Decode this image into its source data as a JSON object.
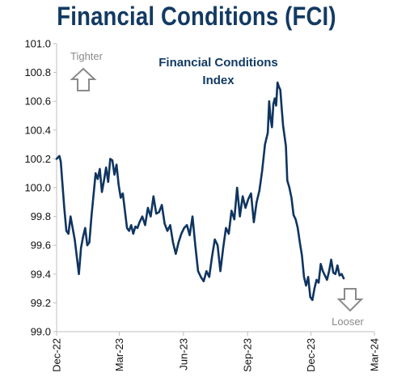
{
  "chart_data": {
    "type": "line",
    "title": "Financial Conditions (FCI)",
    "inner_title": [
      "Financial Conditions",
      "Index"
    ],
    "annotations": {
      "up": "Tighter",
      "down": "Looser"
    },
    "ylim": [
      99.0,
      101.0
    ],
    "yticks": [
      "99.0",
      "99.2",
      "99.4",
      "99.6",
      "99.8",
      "100.0",
      "100.2",
      "100.4",
      "100.6",
      "100.8",
      "101.0"
    ],
    "xlim": [
      "2022-12-01",
      "2024-03-01"
    ],
    "xticks": [
      "Dec-22",
      "Mar-23",
      "Jun-23",
      "Sep-23",
      "Dec-23",
      "Mar-24"
    ],
    "grid": false,
    "colors": {
      "line": "#0f3560",
      "title": "#123a63",
      "arrow": "#8a8a8a",
      "axis": "#bfbfbf"
    },
    "series": [
      {
        "x": [
          "2022-12-01",
          "2022-12-03",
          "2022-12-05",
          "2022-12-07",
          "2022-12-09",
          "2022-12-12",
          "2022-12-15",
          "2022-12-18",
          "2022-12-21",
          "2022-12-24",
          "2022-12-27",
          "2022-12-30",
          "2023-01-02",
          "2023-01-05",
          "2023-01-08",
          "2023-01-11",
          "2023-01-14",
          "2023-01-17",
          "2023-01-20",
          "2023-01-23",
          "2023-01-26",
          "2023-01-29",
          "2023-02-01",
          "2023-02-04",
          "2023-02-07",
          "2023-02-10",
          "2023-02-13",
          "2023-02-16",
          "2023-02-19",
          "2023-02-22",
          "2023-02-25",
          "2023-02-28",
          "2023-03-03",
          "2023-03-06",
          "2023-03-09",
          "2023-03-12",
          "2023-03-15",
          "2023-03-18",
          "2023-03-21",
          "2023-03-24",
          "2023-03-27",
          "2023-03-30",
          "2023-04-03",
          "2023-04-07",
          "2023-04-11",
          "2023-04-15",
          "2023-04-19",
          "2023-04-23",
          "2023-04-27",
          "2023-05-01",
          "2023-05-05",
          "2023-05-09",
          "2023-05-13",
          "2023-05-17",
          "2023-05-21",
          "2023-05-25",
          "2023-05-29",
          "2023-06-02",
          "2023-06-06",
          "2023-06-10",
          "2023-06-14",
          "2023-06-18",
          "2023-06-22",
          "2023-06-26",
          "2023-06-30",
          "2023-07-04",
          "2023-07-08",
          "2023-07-12",
          "2023-07-16",
          "2023-07-20",
          "2023-07-24",
          "2023-07-28",
          "2023-08-01",
          "2023-08-05",
          "2023-08-09",
          "2023-08-13",
          "2023-08-17",
          "2023-08-21",
          "2023-08-25",
          "2023-08-29",
          "2023-09-02",
          "2023-09-06",
          "2023-09-10",
          "2023-09-14",
          "2023-09-18",
          "2023-09-22",
          "2023-09-26",
          "2023-09-30",
          "2023-10-02",
          "2023-10-04",
          "2023-10-06",
          "2023-10-08",
          "2023-10-10",
          "2023-10-12",
          "2023-10-14",
          "2023-10-16",
          "2023-10-18",
          "2023-10-20",
          "2023-10-22",
          "2023-10-24",
          "2023-10-26",
          "2023-10-28",
          "2023-10-31",
          "2023-11-03",
          "2023-11-06",
          "2023-11-09",
          "2023-11-12",
          "2023-11-15",
          "2023-11-18",
          "2023-11-21",
          "2023-11-24",
          "2023-11-27",
          "2023-11-30",
          "2023-12-03",
          "2023-12-06",
          "2023-12-09",
          "2023-12-12",
          "2023-12-15",
          "2023-12-18",
          "2023-12-21",
          "2023-12-24",
          "2023-12-27",
          "2023-12-30",
          "2024-01-02",
          "2024-01-05",
          "2024-01-08",
          "2024-01-11",
          "2024-01-14",
          "2024-01-17"
        ],
        "y": [
          100.2,
          100.21,
          100.22,
          100.18,
          100.05,
          99.86,
          99.7,
          99.68,
          99.8,
          99.72,
          99.64,
          99.52,
          99.4,
          99.58,
          99.66,
          99.72,
          99.6,
          99.62,
          99.8,
          99.95,
          100.1,
          100.06,
          100.13,
          99.97,
          100.05,
          100.14,
          100.04,
          100.2,
          100.19,
          100.09,
          100.16,
          100.02,
          99.93,
          99.96,
          99.84,
          99.72,
          99.7,
          99.74,
          99.68,
          99.73,
          99.72,
          99.76,
          99.8,
          99.74,
          99.86,
          99.8,
          99.94,
          99.82,
          99.83,
          99.88,
          99.75,
          99.7,
          99.74,
          99.62,
          99.54,
          99.62,
          99.68,
          99.72,
          99.74,
          99.67,
          99.8,
          99.6,
          99.42,
          99.38,
          99.35,
          99.42,
          99.38,
          99.52,
          99.64,
          99.6,
          99.42,
          99.58,
          99.72,
          99.68,
          99.84,
          99.78,
          100.0,
          99.8,
          99.94,
          99.86,
          99.92,
          99.96,
          99.76,
          99.9,
          99.98,
          100.12,
          100.3,
          100.38,
          100.6,
          100.48,
          100.42,
          100.58,
          100.62,
          100.57,
          100.73,
          100.7,
          100.68,
          100.55,
          100.43,
          100.36,
          100.29,
          100.05,
          100.0,
          99.93,
          99.81,
          99.78,
          99.72,
          99.62,
          99.53,
          99.38,
          99.32,
          99.38,
          99.24,
          99.22,
          99.3,
          99.36,
          99.34,
          99.47,
          99.42,
          99.39,
          99.36,
          99.42,
          99.5,
          99.41,
          99.4,
          99.46,
          99.39,
          99.4,
          99.37
        ]
      }
    ]
  }
}
